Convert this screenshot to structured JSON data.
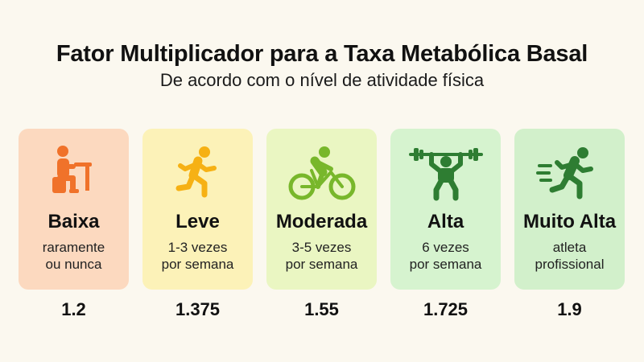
{
  "header": {
    "title": "Fator Multiplicador para a Taxa Metabólica Basal",
    "subtitle": "De acordo com o nível de atividade física"
  },
  "levels": [
    {
      "name": "Baixa",
      "desc_line1": "raramente",
      "desc_line2": "ou nunca",
      "factor": "1.2",
      "color": "#fcd9bf",
      "icon": "sitting-person-icon",
      "icon_color": "#f0722a"
    },
    {
      "name": "Leve",
      "desc_line1": "1-3 vezes",
      "desc_line2": "por semana",
      "factor": "1.375",
      "color": "#fcf2b8",
      "icon": "walking-person-icon",
      "icon_color": "#f6b114"
    },
    {
      "name": "Moderada",
      "desc_line1": "3-5 vezes",
      "desc_line2": "por semana",
      "factor": "1.55",
      "color": "#eaf6c2",
      "icon": "cyclist-icon",
      "icon_color": "#78b72b"
    },
    {
      "name": "Alta",
      "desc_line1": "6 vezes",
      "desc_line2": "por semana",
      "factor": "1.725",
      "color": "#d6f3cf",
      "icon": "weightlifter-icon",
      "icon_color": "#2e7d32"
    },
    {
      "name": "Muito Alta",
      "desc_line1": "atleta",
      "desc_line2": "profissional",
      "factor": "1.9",
      "color": "#d2f0cb",
      "icon": "running-athlete-icon",
      "icon_color": "#2e7d32"
    }
  ]
}
